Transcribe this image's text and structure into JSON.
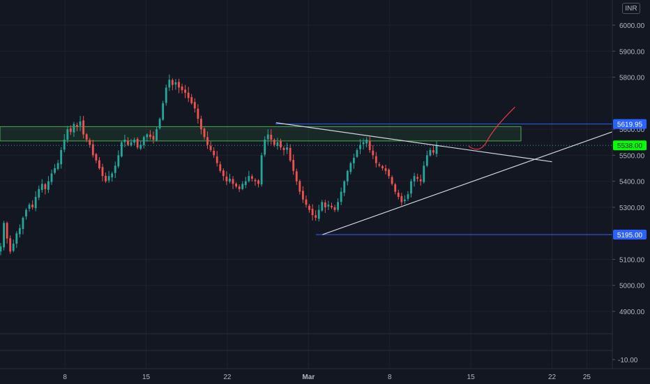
{
  "currency_button": "INR",
  "chart_data": {
    "type": "candlestick",
    "y_ticks": [
      {
        "value": 6000,
        "label": "6000.00"
      },
      {
        "value": 5900,
        "label": "5900.00"
      },
      {
        "value": 5800,
        "label": "5800.00"
      },
      {
        "value": 5600,
        "label": "5600.00"
      },
      {
        "value": 5500,
        "label": "5500.00"
      },
      {
        "value": 5400,
        "label": "5400.00"
      },
      {
        "value": 5300,
        "label": "5300.00"
      },
      {
        "value": 5100,
        "label": "5100.00"
      },
      {
        "value": 5000,
        "label": "5000.00"
      },
      {
        "value": 4900,
        "label": "4900.00"
      }
    ],
    "ylim": [
      4820,
      6040
    ],
    "x_ticks": [
      {
        "day": 8,
        "label": "8"
      },
      {
        "day": 15,
        "label": "15"
      },
      {
        "day": 22,
        "label": "22"
      },
      {
        "day": 29,
        "label": "Mar"
      },
      {
        "day": 36,
        "label": "8"
      },
      {
        "day": 43,
        "label": "15"
      },
      {
        "day": 50,
        "label": "22"
      },
      {
        "day": 53,
        "label": "25"
      }
    ],
    "xlim": [
      2.4,
      55.2
    ],
    "closes": [
      5150,
      5240,
      5180,
      5130,
      5160,
      5200,
      5220,
      5260,
      5290,
      5310,
      5300,
      5340,
      5370,
      5390,
      5370,
      5400,
      5430,
      5450,
      5470,
      5520,
      5560,
      5600,
      5590,
      5620,
      5610,
      5630,
      5580,
      5560,
      5540,
      5500,
      5480,
      5450,
      5420,
      5400,
      5420,
      5430,
      5460,
      5500,
      5550,
      5560,
      5540,
      5550,
      5560,
      5530,
      5540,
      5570,
      5580,
      5570,
      5560,
      5600,
      5640,
      5700,
      5760,
      5790,
      5770,
      5780,
      5760,
      5750,
      5740,
      5720,
      5700,
      5680,
      5640,
      5600,
      5570,
      5540,
      5520,
      5500,
      5470,
      5440,
      5420,
      5400,
      5410,
      5390,
      5380,
      5370,
      5390,
      5400,
      5420,
      5410,
      5400,
      5390,
      5500,
      5560,
      5580,
      5560,
      5540,
      5550,
      5530,
      5520,
      5530,
      5480,
      5440,
      5400,
      5360,
      5330,
      5310,
      5290,
      5270,
      5260,
      5290,
      5320,
      5300,
      5310,
      5300,
      5290,
      5320,
      5360,
      5400,
      5440,
      5470,
      5490,
      5520,
      5540,
      5550,
      5560,
      5520,
      5500,
      5470,
      5460,
      5450,
      5440,
      5420,
      5390,
      5360,
      5340,
      5320,
      5330,
      5350,
      5400,
      5420,
      5410,
      5400,
      5460,
      5500,
      5520,
      5510,
      5540
    ],
    "volume_panel": {
      "ticks": [
        {
          "value": -10,
          "label": "-10.00"
        }
      ]
    },
    "price_labels": [
      {
        "value": 5619.95,
        "label": "5619.95",
        "color": "#2962ff"
      },
      {
        "value": 5538.0,
        "label": "5538.00",
        "color": "#00ff00"
      },
      {
        "value": 5195.0,
        "label": "5195.00",
        "color": "#2962ff"
      }
    ],
    "zone": {
      "low": 5555,
      "high": 5610
    },
    "support_line": 5195.0,
    "current_price": 5538.0,
    "resistance_line": 5619.95,
    "drawn_trendlines": [
      {
        "from": {
          "day": 26.2,
          "value": 5625
        },
        "to": {
          "day": 50,
          "value": 5475
        }
      },
      {
        "from": {
          "day": 30.2,
          "value": 5195
        },
        "to": {
          "day": 55.2,
          "value": 5590
        }
      }
    ],
    "projection": [
      {
        "day": 42.8,
        "value": 5535
      },
      {
        "day": 43.8,
        "value": 5525
      },
      {
        "day": 45,
        "value": 5585
      },
      {
        "day": 46.8,
        "value": 5685
      }
    ],
    "colors": {
      "up": "#26a69a",
      "down": "#ef5350"
    }
  }
}
